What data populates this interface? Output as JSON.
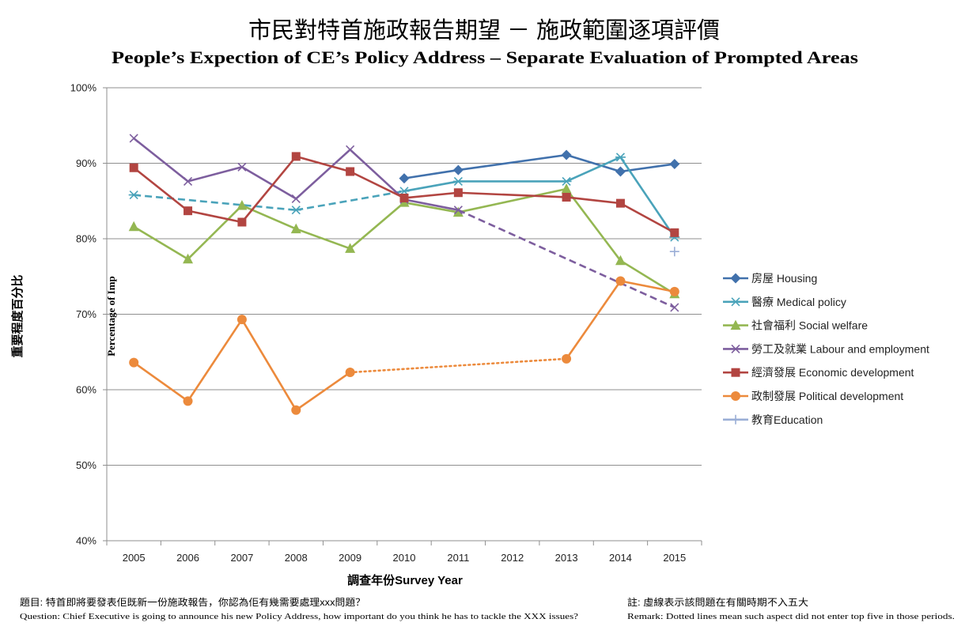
{
  "chart_data": {
    "type": "line",
    "title": "市民對特首施政報告期望 － 施政範圍逐項評價",
    "subtitle": "People’s Expection of CE’s Policy Address – Separate Evaluation of Prompted Areas",
    "xlabel": "調查年份Survey Year",
    "ylabel": "重要程度百分比",
    "ylabel_en": "Percentage of Imp",
    "categories": [
      "2005",
      "2006",
      "2007",
      "2008",
      "2009",
      "2010",
      "2011",
      "2012",
      "2013",
      "2014",
      "2015"
    ],
    "ylim": [
      40,
      100
    ],
    "yticks": [
      40,
      50,
      60,
      70,
      80,
      90,
      100
    ],
    "ytick_labels": [
      "40%",
      "50%",
      "60%",
      "70%",
      "80%",
      "90%",
      "100%"
    ],
    "grid": true,
    "legend_position": "right",
    "series": [
      {
        "name": "房屋 Housing",
        "color": "#4171AC",
        "marker": "diamond",
        "values": [
          null,
          null,
          null,
          null,
          null,
          88.0,
          89.1,
          null,
          91.1,
          88.9,
          89.9
        ],
        "line_styles": []
      },
      {
        "name": "醫療 Medical policy",
        "color": "#4AA3BA",
        "marker": "asterisk",
        "values": [
          85.8,
          null,
          null,
          83.8,
          null,
          86.3,
          87.6,
          null,
          87.6,
          90.8,
          80.2
        ],
        "line_styles": [
          {
            "from": "2005",
            "to": "2010",
            "style": "dashed"
          }
        ]
      },
      {
        "name": "社會福利 Social welfare",
        "color": "#94B752",
        "marker": "triangle",
        "values": [
          81.6,
          77.3,
          84.4,
          81.3,
          78.7,
          84.8,
          83.5,
          null,
          86.6,
          77.1,
          72.7
        ],
        "line_styles": []
      },
      {
        "name": "勞工及就業 Labour and employment",
        "color": "#7D5E9E",
        "marker": "cross",
        "values": [
          93.3,
          87.6,
          89.5,
          85.3,
          91.8,
          85.2,
          83.8,
          null,
          null,
          null,
          70.9
        ],
        "line_styles": [
          {
            "from": "2011",
            "to": "2015",
            "style": "dashed"
          }
        ]
      },
      {
        "name": "經濟發展 Economic development",
        "color": "#B24541",
        "marker": "square",
        "values": [
          89.4,
          83.7,
          82.2,
          90.9,
          88.9,
          85.4,
          86.1,
          null,
          85.5,
          84.7,
          80.8
        ],
        "line_styles": []
      },
      {
        "name": "政制發展 Political development",
        "color": "#EC8A3C",
        "marker": "circle",
        "values": [
          63.6,
          58.5,
          69.3,
          57.3,
          62.3,
          null,
          null,
          null,
          64.1,
          74.4,
          73.0
        ],
        "line_styles": [
          {
            "from": "2009",
            "to": "2013",
            "style": "dotted"
          }
        ]
      },
      {
        "name": "教育Education",
        "color": "#9AAED6",
        "marker": "plus",
        "values": [
          null,
          null,
          null,
          null,
          null,
          null,
          null,
          null,
          null,
          null,
          78.3
        ],
        "line_styles": []
      }
    ]
  },
  "footer": {
    "question_zh": "題目: 特首即將要發表佢既新一份施政報告，你認為佢有幾需要處理xxx問題？",
    "question_en": "Question: Chief Executive is going to announce his new Policy Address, how important do you think he has to tackle the XXX issues?",
    "remark_zh": "註: 虛線表示該問題在有關時期不入五大",
    "remark_en": "Remark:  Dotted lines mean such aspect did not enter top five in those periods."
  }
}
